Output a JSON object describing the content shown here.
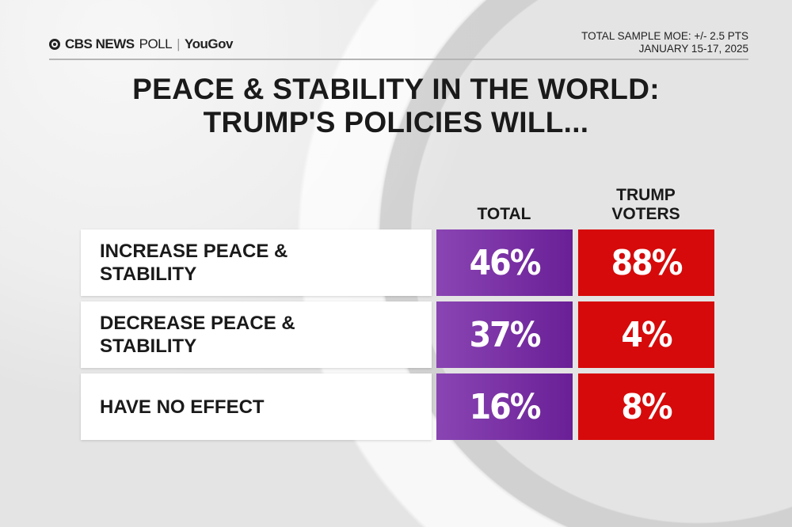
{
  "header": {
    "logo_brand": "CBS NEWS",
    "logo_poll": "POLL",
    "logo_partner": "YouGov",
    "moe": "TOTAL SAMPLE MOE: +/- 2.5 PTS",
    "date": "JANUARY 15-17, 2025"
  },
  "chart_data": {
    "type": "table",
    "title_line1": "PEACE & STABILITY IN THE WORLD:",
    "title_line2": "TRUMP'S POLICIES WILL...",
    "columns": [
      "TOTAL",
      "TRUMP VOTERS"
    ],
    "column_labels": {
      "total": "TOTAL",
      "trump_line1": "TRUMP",
      "trump_line2": "VOTERS"
    },
    "rows": [
      {
        "label": "INCREASE PEACE & STABILITY",
        "total": "46%",
        "trump_voters": "88%"
      },
      {
        "label": "DECREASE PEACE & STABILITY",
        "total": "37%",
        "trump_voters": "4%"
      },
      {
        "label": "HAVE NO EFFECT",
        "total": "16%",
        "trump_voters": "8%"
      }
    ],
    "colors": {
      "total": "#7a33a6",
      "trump_voters": "#d60a0a"
    }
  }
}
